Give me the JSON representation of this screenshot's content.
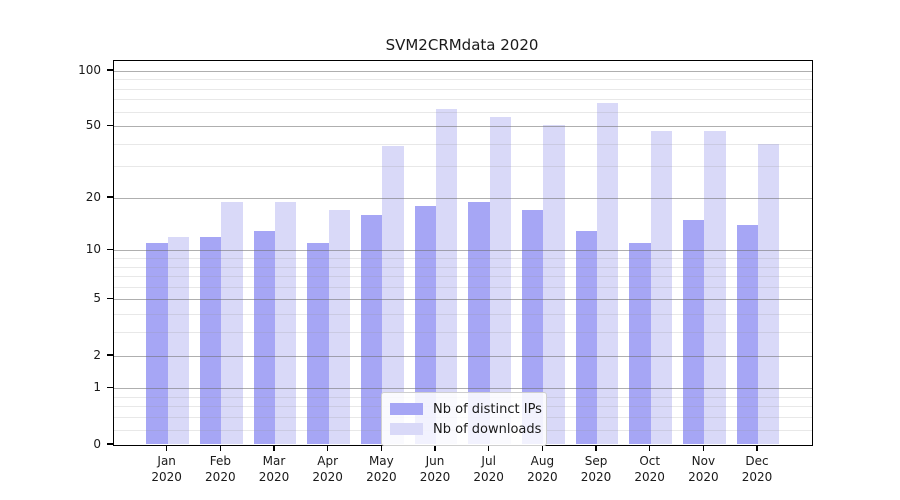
{
  "title": "SVM2CRMdata 2020",
  "legend": {
    "position": "lower center",
    "items": [
      {
        "label": "Nb of distinct IPs",
        "color": "#a6a6f5"
      },
      {
        "label": "Nb of downloads",
        "color": "#d9d9f8"
      }
    ]
  },
  "chart_data": {
    "type": "bar",
    "title": "SVM2CRMdata 2020",
    "categories": [
      "Jan",
      "Feb",
      "Mar",
      "Apr",
      "May",
      "Jun",
      "Jul",
      "Aug",
      "Sep",
      "Oct",
      "Nov",
      "Dec"
    ],
    "category_year": "2020",
    "series": [
      {
        "name": "Nb of distinct IPs",
        "color": "#a6a6f5",
        "values": [
          11,
          12,
          13,
          11,
          16,
          18,
          19,
          17,
          13,
          11,
          15,
          14
        ]
      },
      {
        "name": "Nb of downloads",
        "color": "#d9d9f8",
        "values": [
          12,
          19,
          19,
          17,
          39,
          62,
          56,
          51,
          67,
          47,
          47,
          40
        ]
      }
    ],
    "xlabel": "",
    "ylabel": "",
    "yscale": "symlog (log1p)",
    "ylim": [
      0,
      113
    ],
    "y_major_ticks": [
      0,
      1,
      2,
      5,
      10,
      20,
      50,
      100
    ],
    "y_minor_gridlines": [
      0.2,
      0.4,
      0.6,
      0.8,
      3,
      4,
      6,
      7,
      8,
      9,
      30,
      40,
      60,
      70,
      80,
      90
    ],
    "grid": "horizontal major+minor, drawn above bars",
    "legend_position": "lower center"
  }
}
